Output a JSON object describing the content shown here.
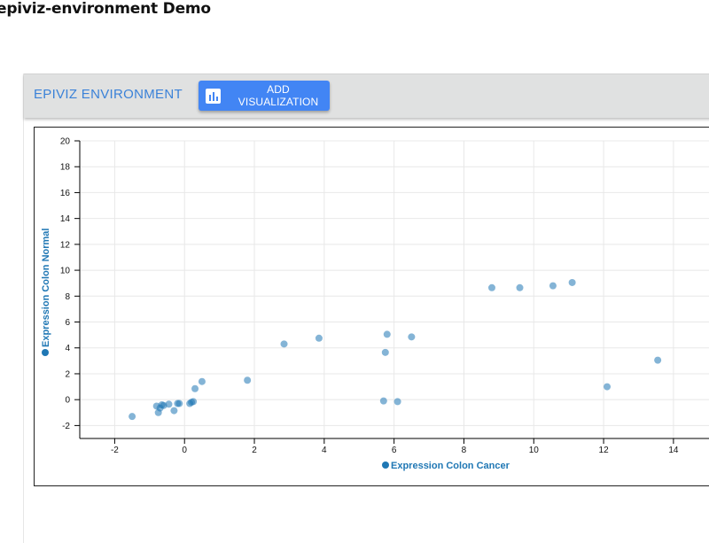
{
  "page": {
    "title": "epiviz-environment Demo"
  },
  "toolbar": {
    "title": "EPIVIZ ENVIRONMENT",
    "add_button_label": "ADD VISUALIZATION",
    "add_button_icon": "bar-chart-icon",
    "accent_color": "#4285f4"
  },
  "chart_data": {
    "type": "scatter",
    "xlabel": "Expression Colon Cancer",
    "ylabel": "Expression Colon Normal",
    "xlim": [
      -3,
      15.5
    ],
    "ylim": [
      -3,
      20
    ],
    "x_ticks": [
      -2,
      0,
      2,
      4,
      6,
      8,
      10,
      12,
      14
    ],
    "y_ticks": [
      -2,
      0,
      2,
      4,
      6,
      8,
      10,
      12,
      14,
      16,
      18,
      20
    ],
    "grid": true,
    "point_color": "#1f77b4",
    "points": [
      {
        "x": -1.5,
        "y": -1.3
      },
      {
        "x": -0.8,
        "y": -0.5
      },
      {
        "x": -0.75,
        "y": -1.0
      },
      {
        "x": -0.7,
        "y": -0.65
      },
      {
        "x": -0.65,
        "y": -0.4
      },
      {
        "x": -0.6,
        "y": -0.45
      },
      {
        "x": -0.45,
        "y": -0.35
      },
      {
        "x": -0.3,
        "y": -0.85
      },
      {
        "x": -0.2,
        "y": -0.3
      },
      {
        "x": -0.15,
        "y": -0.3
      },
      {
        "x": 0.15,
        "y": -0.3
      },
      {
        "x": 0.2,
        "y": -0.2
      },
      {
        "x": 0.25,
        "y": -0.15
      },
      {
        "x": 0.3,
        "y": 0.85
      },
      {
        "x": 0.5,
        "y": 1.4
      },
      {
        "x": 1.8,
        "y": 1.5
      },
      {
        "x": 2.85,
        "y": 4.3
      },
      {
        "x": 3.85,
        "y": 4.75
      },
      {
        "x": 5.7,
        "y": -0.1
      },
      {
        "x": 5.75,
        "y": 3.65
      },
      {
        "x": 5.8,
        "y": 5.05
      },
      {
        "x": 6.1,
        "y": -0.15
      },
      {
        "x": 6.5,
        "y": 4.85
      },
      {
        "x": 8.8,
        "y": 8.65
      },
      {
        "x": 9.6,
        "y": 8.65
      },
      {
        "x": 10.55,
        "y": 8.8
      },
      {
        "x": 11.1,
        "y": 9.05
      },
      {
        "x": 12.1,
        "y": 1.0
      },
      {
        "x": 13.55,
        "y": 3.05
      }
    ]
  }
}
